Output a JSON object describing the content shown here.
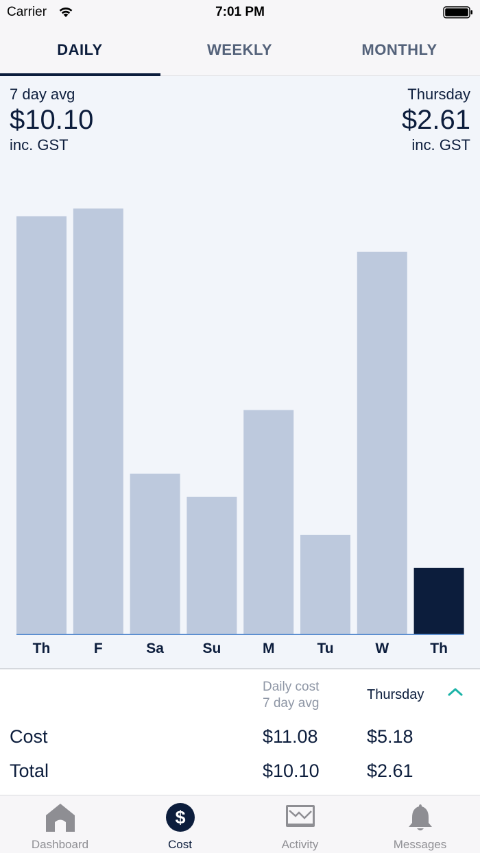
{
  "status_bar": {
    "carrier": "Carrier",
    "time": "7:01 PM"
  },
  "tabs": [
    {
      "label": "DAILY",
      "active": true
    },
    {
      "label": "WEEKLY",
      "active": false
    },
    {
      "label": "MONTHLY",
      "active": false
    }
  ],
  "summary": {
    "left": {
      "label": "7 day avg",
      "value": "$10.10",
      "sub": "inc. GST"
    },
    "right": {
      "label": "Thursday",
      "value": "$2.61",
      "sub": "inc. GST"
    }
  },
  "chart_data": {
    "type": "bar",
    "categories": [
      "Th",
      "F",
      "Sa",
      "Su",
      "M",
      "Tu",
      "W",
      "Th"
    ],
    "values": [
      16.4,
      16.7,
      6.3,
      5.4,
      8.8,
      3.9,
      15.0,
      2.61
    ],
    "selected_index": 7,
    "ylim": [
      0,
      18
    ],
    "colors": {
      "bar": "#bdc9dd",
      "selected": "#0c1d3c",
      "baseline": "#5d8fd0"
    }
  },
  "table": {
    "col_daily_line1": "Daily cost",
    "col_daily_line2": "7 day avg",
    "col_day": "Thursday",
    "rows": [
      {
        "label": "Cost",
        "avg": "$11.08",
        "day": "$5.18"
      },
      {
        "label": "Total",
        "avg": "$10.10",
        "day": "$2.61"
      }
    ]
  },
  "tabbar": [
    {
      "label": "Dashboard",
      "icon": "house-icon",
      "active": false
    },
    {
      "label": "Cost",
      "icon": "dollar-icon",
      "active": true
    },
    {
      "label": "Activity",
      "icon": "activity-chart-icon",
      "active": false
    },
    {
      "label": "Messages",
      "icon": "bell-icon",
      "active": false
    }
  ],
  "accent": "#1bb3a7"
}
